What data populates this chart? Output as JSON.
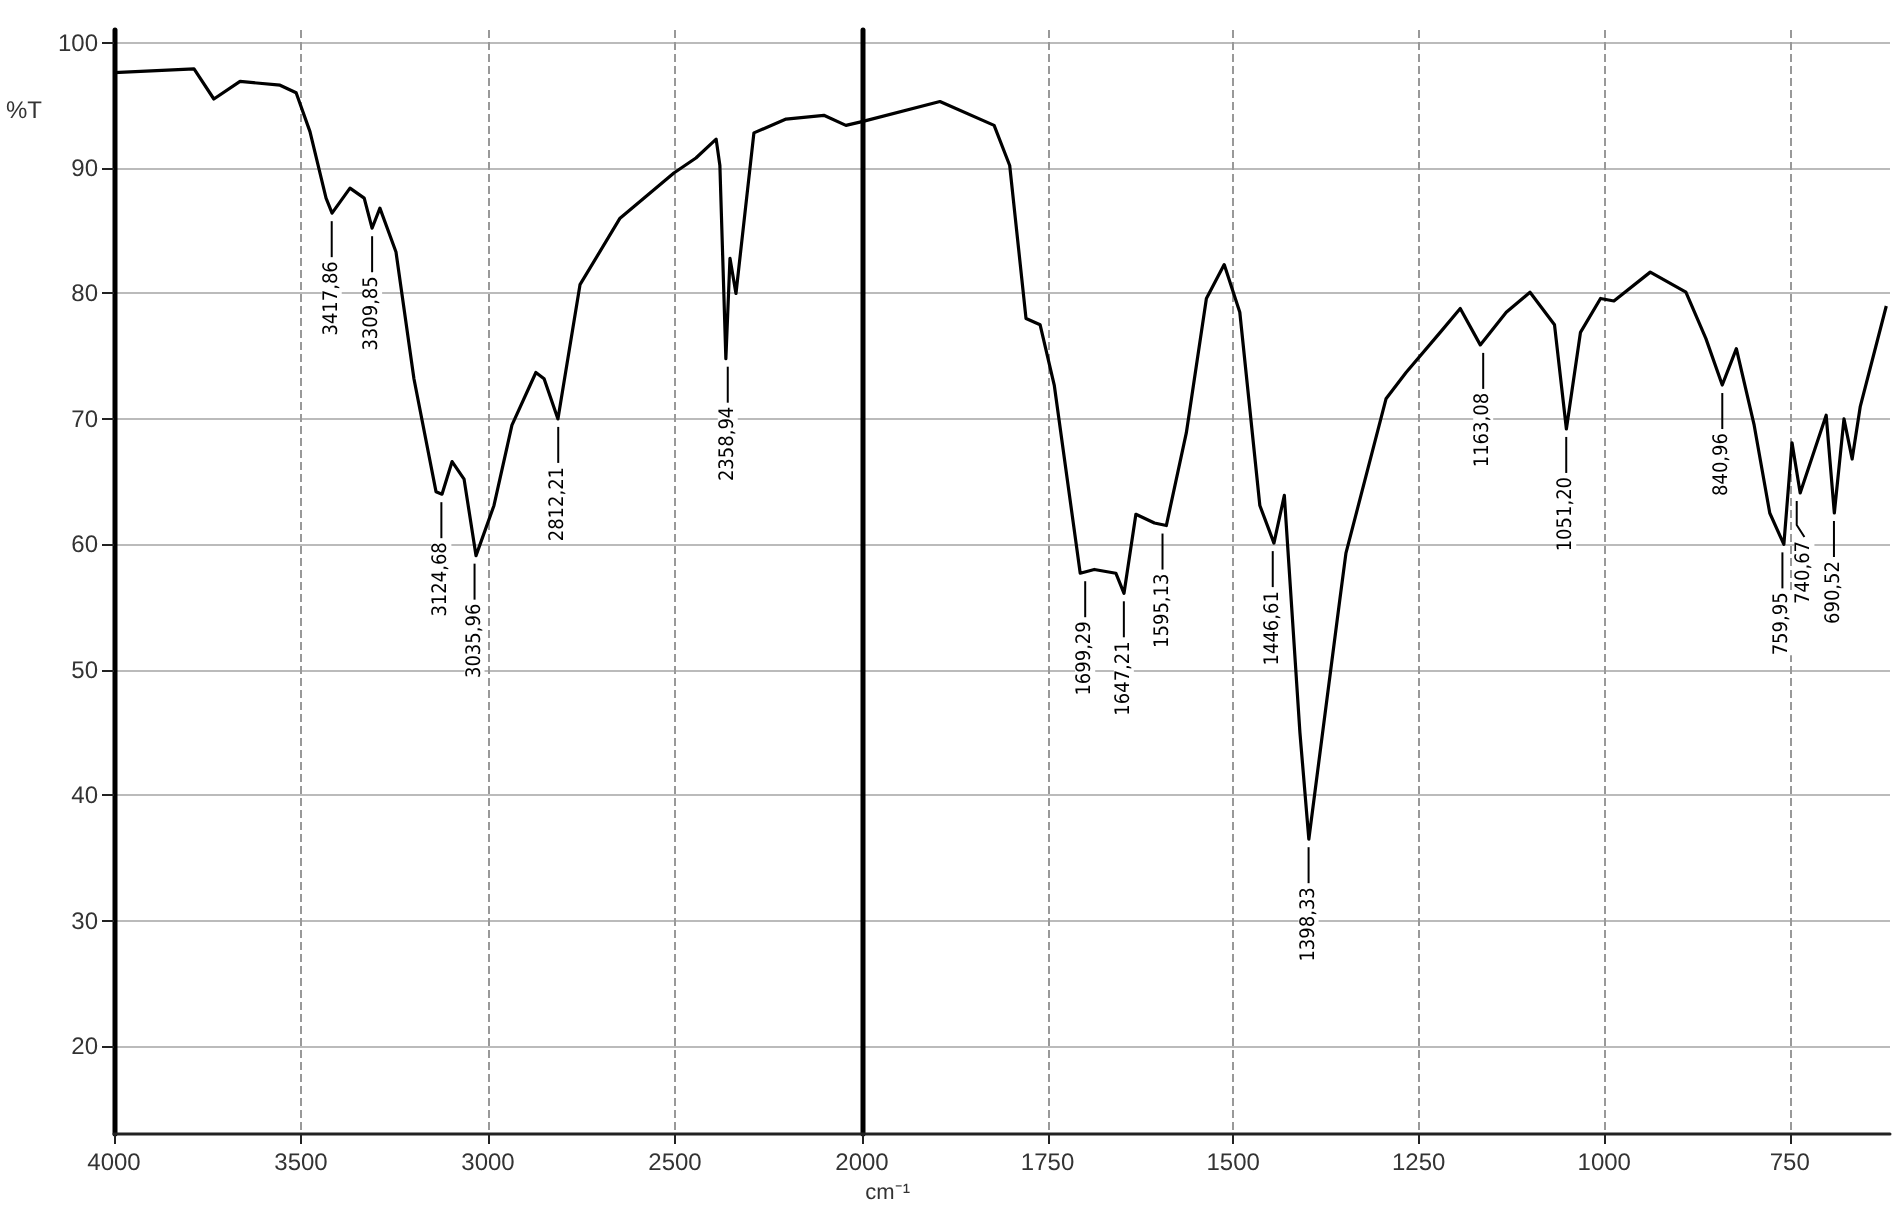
{
  "chart_data": [
    {
      "type": "line",
      "ylabel": "%T",
      "xlim": [
        4000,
        2000
      ],
      "xticks": [
        4000,
        3500,
        3000,
        2500,
        2000
      ],
      "ylim": [
        13,
        101
      ],
      "yticks": [
        20,
        30,
        40,
        50,
        60,
        70,
        80,
        90,
        100
      ],
      "grid": true,
      "marker": "none",
      "tick_labels": "xy",
      "series": [
        {
          "color": "#000000",
          "x": [
            4000,
            3786,
            3733,
            3663,
            3556,
            3513,
            3476,
            3433,
            3417,
            3369,
            3331,
            3310,
            3289,
            3246,
            3198,
            3139,
            3123,
            3096,
            3064,
            3032,
            2984,
            2936,
            2872,
            2850,
            2813,
            2754,
            2647,
            2503,
            2444,
            2390,
            2380,
            2364,
            2353,
            2337,
            2289,
            2203,
            2102,
            2043,
            2000
          ],
          "values": [
            97.6,
            97.9,
            95.5,
            96.9,
            96.6,
            96,
            92.9,
            87.6,
            86.4,
            88.4,
            87.6,
            85.2,
            86.8,
            83.3,
            73.2,
            64.2,
            64,
            66.6,
            65.2,
            59.1,
            63.1,
            69.5,
            73.7,
            73.2,
            70,
            80.7,
            86,
            89.6,
            90.8,
            92.3,
            90.2,
            74.8,
            82.8,
            80,
            92.8,
            93.9,
            94.2,
            93.4,
            93.7
          ]
        }
      ],
      "annotations": [
        {
          "text": "3417,86",
          "x": 3417.86,
          "y": 86.4
        },
        {
          "text": "3309,85",
          "x": 3309.85,
          "y": 85.2
        },
        {
          "text": "3124,68",
          "x": 3124.68,
          "y": 64
        },
        {
          "text": "3035,96",
          "x": 3035.96,
          "y": 59.1
        },
        {
          "text": "2812,21",
          "x": 2812.21,
          "y": 70
        },
        {
          "text": "2358,94",
          "x": 2358.94,
          "y": 74.8
        }
      ]
    },
    {
      "type": "line",
      "xlabel": "cm⁻¹",
      "xlim": [
        2000,
        615
      ],
      "xticks": [
        1750,
        1500,
        1250,
        1000,
        750
      ],
      "ylim": [
        13,
        101
      ],
      "yticks": [
        20,
        30,
        40,
        50,
        60,
        70,
        80,
        90,
        100
      ],
      "grid": true,
      "marker": "none",
      "tick_labels": "x",
      "series": [
        {
          "color": "#000000",
          "x": [
            2000,
            1895,
            1822,
            1801,
            1779,
            1760,
            1741,
            1706,
            1687,
            1658,
            1647,
            1631,
            1606,
            1590,
            1563,
            1536,
            1512,
            1491,
            1464,
            1445,
            1431,
            1410,
            1398,
            1356,
            1348,
            1294,
            1267,
            1221,
            1194,
            1167,
            1132,
            1100,
            1067,
            1051,
            1032,
            1005,
            987,
            938,
            890,
            863,
            841,
            822,
            798,
            777,
            758,
            747,
            736,
            701,
            690,
            677,
            666,
            655,
            620
          ],
          "values": [
            93.7,
            95.3,
            93.4,
            90.2,
            78,
            77.5,
            72.7,
            57.7,
            58,
            57.7,
            56.1,
            62.4,
            61.7,
            61.5,
            68.9,
            79.6,
            82.3,
            78.5,
            63.1,
            60.1,
            63.9,
            45,
            36.5,
            55.7,
            59.3,
            71.6,
            73.7,
            76.9,
            78.8,
            75.9,
            78.5,
            80.1,
            77.5,
            69.2,
            76.9,
            79.6,
            79.4,
            81.7,
            80.1,
            76.4,
            72.7,
            75.6,
            69.5,
            62.5,
            60,
            68.1,
            64.1,
            70.3,
            62.5,
            70,
            66.8,
            71,
            79
          ]
        }
      ],
      "annotations": [
        {
          "text": "1699,29",
          "x": 1699.29,
          "y": 57.7
        },
        {
          "text": "1647,21",
          "x": 1647.21,
          "y": 56.1
        },
        {
          "text": "1595,13",
          "x": 1595.13,
          "y": 61.5
        },
        {
          "text": "1446,61",
          "x": 1446.61,
          "y": 60.1
        },
        {
          "text": "1398,33",
          "x": 1398.33,
          "y": 36.5
        },
        {
          "text": "1163,08",
          "x": 1163.08,
          "y": 75.9
        },
        {
          "text": "1051,20",
          "x": 1051.2,
          "y": 69.2
        },
        {
          "text": "840,96",
          "x": 840.96,
          "y": 72.7
        },
        {
          "text": "759,95",
          "x": 759.95,
          "y": 60
        },
        {
          "text": "740,67",
          "x": 740.67,
          "y": 64.1
        },
        {
          "text": "690,52",
          "x": 690.52,
          "y": 62.5
        }
      ]
    }
  ]
}
